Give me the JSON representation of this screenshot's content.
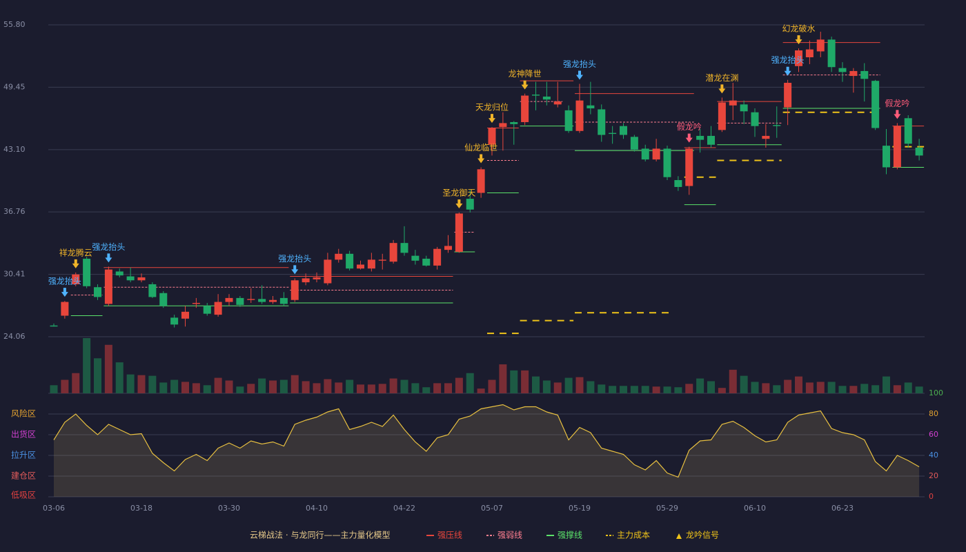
{
  "chart_data": {
    "type": "candlestick",
    "categories": [
      "03-06",
      null,
      null,
      null,
      null,
      null,
      null,
      null,
      "03-18",
      null,
      null,
      null,
      null,
      null,
      null,
      null,
      "03-30",
      null,
      null,
      null,
      null,
      null,
      null,
      null,
      "04-10",
      null,
      null,
      null,
      null,
      null,
      null,
      null,
      "04-22",
      null,
      null,
      null,
      null,
      null,
      null,
      null,
      "05-07",
      null,
      null,
      null,
      null,
      null,
      null,
      null,
      "05-19",
      null,
      null,
      null,
      null,
      null,
      null,
      null,
      "05-29",
      null,
      null,
      null,
      null,
      null,
      null,
      null,
      "06-10",
      null,
      null,
      null,
      null,
      null,
      null,
      null,
      "06-23",
      null,
      null,
      null,
      null,
      null,
      null,
      null
    ],
    "open": [
      25.2,
      26.2,
      29.4,
      32.0,
      29.1,
      27.4,
      30.7,
      30.2,
      29.8,
      29.4,
      28.5,
      26.0,
      25.9,
      27.4,
      27.2,
      26.3,
      27.6,
      28.0,
      27.8,
      27.9,
      27.6,
      28.0,
      27.8,
      29.6,
      29.9,
      29.5,
      31.9,
      32.5,
      31.0,
      31.0,
      31.8,
      31.7,
      33.6,
      32.3,
      32.0,
      31.3,
      32.9,
      32.7,
      38.1,
      38.7,
      43.6,
      45.4,
      45.9,
      45.9,
      48.7,
      48.5,
      47.7,
      47.1,
      45.0,
      47.6,
      47.2,
      44.8,
      45.5,
      44.4,
      43.2,
      42.1,
      43.2,
      40.0,
      39.4,
      44.5,
      44.5,
      45.1,
      47.6,
      47.7,
      46.9,
      44.2,
      45.6,
      47.4,
      51.6,
      52.5,
      53.1,
      54.3,
      51.4,
      50.6,
      51.1,
      50.1,
      43.5,
      41.3,
      46.3,
      43.3
    ],
    "high": [
      25.4,
      27.7,
      30.6,
      32.2,
      29.4,
      31.2,
      31.0,
      31.1,
      30.5,
      29.6,
      28.7,
      26.3,
      27.2,
      28.0,
      27.5,
      28.4,
      28.4,
      28.2,
      29.0,
      29.3,
      28.2,
      28.6,
      30.0,
      30.5,
      30.6,
      32.6,
      33.0,
      32.8,
      31.8,
      32.6,
      32.5,
      33.9,
      35.3,
      32.9,
      32.3,
      33.2,
      34.4,
      36.7,
      39.0,
      41.3,
      45.4,
      46.9,
      46.0,
      48.8,
      50.0,
      50.0,
      50.0,
      47.6,
      49.8,
      50.0,
      47.7,
      45.5,
      45.8,
      44.6,
      43.6,
      44.2,
      43.5,
      40.4,
      43.4,
      45.2,
      45.5,
      48.4,
      49.9,
      48.1,
      47.3,
      45.7,
      47.5,
      50.2,
      53.4,
      54.2,
      55.1,
      54.6,
      52.0,
      51.4,
      51.9,
      50.2,
      45.2,
      45.8,
      46.6,
      44.2
    ],
    "low": [
      25.1,
      25.9,
      29.2,
      29.0,
      27.8,
      27.2,
      30.1,
      29.6,
      29.6,
      28.0,
      27.0,
      25.0,
      25.1,
      27.0,
      26.2,
      26.1,
      27.2,
      27.1,
      27.5,
      27.4,
      27.4,
      27.2,
      27.6,
      29.3,
      29.6,
      29.3,
      31.6,
      30.8,
      30.9,
      30.7,
      30.9,
      31.5,
      32.3,
      31.4,
      31.2,
      30.9,
      32.6,
      32.6,
      36.7,
      38.2,
      42.5,
      43.0,
      43.6,
      45.6,
      47.1,
      47.6,
      47.4,
      44.8,
      44.8,
      46.7,
      43.9,
      43.7,
      44.2,
      42.9,
      41.9,
      41.9,
      40.0,
      38.9,
      38.5,
      42.8,
      43.3,
      44.9,
      46.1,
      45.7,
      44.4,
      43.3,
      44.3,
      45.6,
      51.0,
      51.8,
      52.5,
      51.0,
      50.0,
      48.9,
      48.0,
      45.1,
      40.6,
      41.1,
      43.3,
      42.0
    ],
    "close": [
      25.1,
      27.6,
      30.4,
      29.2,
      28.1,
      30.9,
      30.3,
      29.8,
      30.1,
      28.1,
      27.2,
      25.3,
      26.6,
      27.5,
      26.4,
      27.6,
      28.0,
      27.3,
      27.9,
      27.6,
      27.8,
      27.4,
      29.8,
      30.0,
      30.1,
      31.9,
      32.5,
      31.0,
      31.4,
      31.9,
      31.9,
      33.6,
      32.6,
      31.8,
      31.3,
      33.0,
      33.3,
      36.6,
      37.0,
      41.1,
      45.3,
      45.8,
      45.7,
      48.6,
      48.6,
      48.2,
      48.0,
      45.0,
      48.1,
      47.3,
      44.6,
      44.7,
      44.6,
      43.1,
      42.1,
      43.2,
      40.3,
      39.3,
      43.2,
      44.1,
      43.6,
      47.9,
      48.1,
      47.0,
      45.5,
      44.5,
      45.5,
      49.9,
      53.2,
      53.3,
      54.3,
      51.5,
      51.0,
      51.1,
      50.3,
      45.3,
      41.3,
      45.5,
      43.7,
      42.5
    ],
    "up_color": "#e8463c",
    "down_color": "#1fa968",
    "ylim": [
      24.06,
      55.8
    ],
    "yticks": [
      {
        "value": 55.8,
        "label": "55.80"
      },
      {
        "value": 49.45,
        "label": "49.45"
      },
      {
        "value": 43.1,
        "label": "43.10"
      },
      {
        "value": 36.76,
        "label": "36.76"
      },
      {
        "value": 30.41,
        "label": "30.41"
      },
      {
        "value": 24.06,
        "label": "24.06"
      }
    ],
    "grid": true,
    "volume": [
      12,
      20,
      30,
      82,
      52,
      72,
      46,
      28,
      27,
      26,
      16,
      20,
      17,
      15,
      12,
      23,
      19,
      10,
      14,
      22,
      19,
      20,
      27,
      18,
      15,
      21,
      16,
      20,
      13,
      13,
      14,
      22,
      20,
      15,
      9,
      15,
      15,
      23,
      30,
      7,
      20,
      43,
      34,
      34,
      25,
      19,
      16,
      23,
      24,
      18,
      13,
      11,
      11,
      11,
      11,
      10,
      10,
      9,
      14,
      22,
      18,
      8,
      35,
      26,
      17,
      15,
      12,
      20,
      25,
      16,
      17,
      17,
      11,
      11,
      14,
      12,
      25,
      12,
      16,
      10
    ],
    "signals": [
      {
        "index": 1,
        "label": "强龙抬头",
        "color": "#4fb3ff"
      },
      {
        "index": 2,
        "label": "祥龙腾云",
        "color": "#f0b429"
      },
      {
        "index": 5,
        "label": "强龙抬头",
        "color": "#4fb3ff"
      },
      {
        "index": 22,
        "label": "强龙抬头",
        "color": "#4fb3ff"
      },
      {
        "index": 37,
        "label": "圣龙御天",
        "color": "#f0b429"
      },
      {
        "index": 39,
        "label": "仙龙临世",
        "color": "#f0b429"
      },
      {
        "index": 40,
        "label": "天龙归位",
        "color": "#f0b429"
      },
      {
        "index": 43,
        "label": "龙神降世",
        "color": "#f0b429"
      },
      {
        "index": 48,
        "label": "强龙抬头",
        "color": "#4fb3ff"
      },
      {
        "index": 58,
        "label": "假龙吟",
        "color": "#ff5c7a"
      },
      {
        "index": 61,
        "label": "潜龙在渊",
        "color": "#f0b429"
      },
      {
        "index": 67,
        "label": "强龙抬头",
        "color": "#4fb3ff"
      },
      {
        "index": 68,
        "label": "幻龙破水",
        "color": "#f0b429"
      },
      {
        "index": 77,
        "label": "假龙吟",
        "color": "#ff5c7a"
      }
    ],
    "levels": [
      {
        "name": "强压线",
        "color": "#e8463c",
        "dashed": false,
        "segments": [
          {
            "start": 5,
            "end": 21,
            "value": 31.1
          },
          {
            "start": 22,
            "end": 36,
            "value": 30.2
          },
          {
            "start": 40,
            "end": 42,
            "value": 45.3
          },
          {
            "start": 43,
            "end": 47,
            "value": 50.1
          },
          {
            "start": 48,
            "end": 58,
            "value": 48.8
          },
          {
            "start": 58,
            "end": 60,
            "value": 43.3
          },
          {
            "start": 61,
            "end": 66,
            "value": 48.0
          },
          {
            "start": 67,
            "end": 75,
            "value": 54.0
          },
          {
            "start": 77,
            "end": 79,
            "value": 45.5
          }
        ]
      },
      {
        "name": "强弱线",
        "color": "#ff7f90",
        "dashed": true,
        "segments": [
          {
            "start": 2,
            "end": 4,
            "value": 28.3
          },
          {
            "start": 5,
            "end": 21,
            "value": 29.1
          },
          {
            "start": 22,
            "end": 36,
            "value": 28.8
          },
          {
            "start": 37,
            "end": 38,
            "value": 34.7
          },
          {
            "start": 40,
            "end": 42,
            "value": 42.0
          },
          {
            "start": 43,
            "end": 46,
            "value": 48.0
          },
          {
            "start": 48,
            "end": 58,
            "value": 45.9
          },
          {
            "start": 61,
            "end": 66,
            "value": 45.8
          },
          {
            "start": 67,
            "end": 75,
            "value": 50.7
          }
        ]
      },
      {
        "name": "强撑线",
        "color": "#5be36a",
        "dashed": false,
        "segments": [
          {
            "start": 2,
            "end": 4,
            "value": 26.2
          },
          {
            "start": 5,
            "end": 21,
            "value": 27.2
          },
          {
            "start": 22,
            "end": 36,
            "value": 27.5
          },
          {
            "start": 37,
            "end": 38,
            "value": 32.7
          },
          {
            "start": 40,
            "end": 42,
            "value": 38.7
          },
          {
            "start": 43,
            "end": 47,
            "value": 45.5
          },
          {
            "start": 48,
            "end": 58,
            "value": 43.0
          },
          {
            "start": 58,
            "end": 60,
            "value": 37.5
          },
          {
            "start": 61,
            "end": 66,
            "value": 43.6
          },
          {
            "start": 67,
            "end": 75,
            "value": 47.3
          },
          {
            "start": 77,
            "end": 79,
            "value": 41.3
          }
        ]
      },
      {
        "name": "主力成本",
        "color": "#f0c419",
        "dashed": true,
        "segments": [
          {
            "start": 40,
            "end": 42,
            "value": 24.4
          },
          {
            "start": 43,
            "end": 47,
            "value": 25.7
          },
          {
            "start": 48,
            "end": 56,
            "value": 26.5
          },
          {
            "start": 58,
            "end": 60,
            "value": 40.3
          },
          {
            "start": 61,
            "end": 66,
            "value": 42.0
          },
          {
            "start": 67,
            "end": 75,
            "value": 46.9
          },
          {
            "start": 77,
            "end": 79,
            "value": 43.4
          }
        ]
      }
    ],
    "oscillator": {
      "values": [
        55,
        72,
        80,
        69,
        60,
        70,
        65,
        60,
        61,
        42,
        33,
        25,
        36,
        41,
        35,
        47,
        52,
        47,
        54,
        51,
        53,
        49,
        70,
        74,
        77,
        82,
        85,
        65,
        68,
        72,
        68,
        79,
        65,
        53,
        44,
        57,
        60,
        75,
        78,
        85,
        87,
        89,
        84,
        87,
        87,
        82,
        79,
        55,
        67,
        62,
        47,
        44,
        41,
        31,
        26,
        35,
        23,
        19,
        45,
        54,
        55,
        70,
        73,
        67,
        59,
        53,
        55,
        72,
        79,
        81,
        83,
        66,
        62,
        60,
        55,
        34,
        25,
        40,
        35,
        29
      ],
      "color": "#e8c040",
      "ylim": [
        0,
        100
      ],
      "yticks": [
        100,
        80,
        60,
        40,
        20,
        0
      ],
      "ytick_colors": [
        "#4caf50",
        "#e0a030",
        "#d040d0",
        "#4a90e2",
        "#e05a5a",
        "#e04040"
      ],
      "zones": [
        {
          "label": "风险区",
          "value": 80,
          "color": "#e0a030"
        },
        {
          "label": "出货区",
          "value": 60,
          "color": "#d040d0"
        },
        {
          "label": "拉升区",
          "value": 40,
          "color": "#4a90e2"
        },
        {
          "label": "建仓区",
          "value": 20,
          "color": "#e05a5a"
        },
        {
          "label": "低吸区",
          "value": 0,
          "color": "#e04040"
        }
      ]
    },
    "legend_title": "云梯战法 · 与龙同行——主力量化模型",
    "signal_legend": "龙吟信号"
  }
}
